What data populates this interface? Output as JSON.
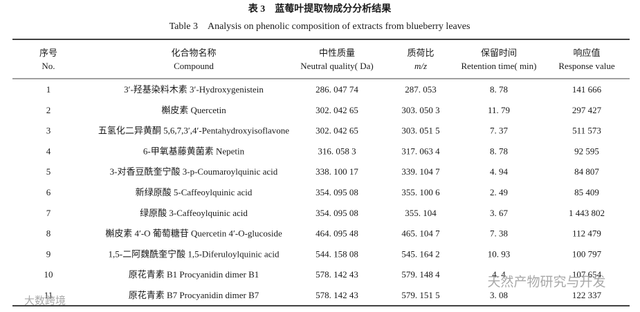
{
  "title_cn": "表 3　蓝莓叶提取物成分分析结果",
  "title_en": "Table 3　Analysis on phenolic composition of extracts from blueberry leaves",
  "table": {
    "header_cn": [
      "序号",
      "化合物名称",
      "中性质量",
      "质荷比",
      "保留时间",
      "响应值"
    ],
    "header_en": [
      "No.",
      "Compound",
      "Neutral quality( Da)",
      "m/z",
      "Retention time( min)",
      "Response value"
    ],
    "rows": [
      [
        "1",
        "3′-羟基染料木素 3′-Hydroxygenistein",
        "286. 047 74",
        "287. 053",
        "8. 78",
        "141 666"
      ],
      [
        "2",
        "槲皮素 Quercetin",
        "302. 042 65",
        "303. 050 3",
        "11. 79",
        "297 427"
      ],
      [
        "3",
        "五氢化二异黄酮 5,6,7,3′,4′-Pentahydroxyisoflavone",
        "302. 042 65",
        "303. 051 5",
        "7. 37",
        "511 573"
      ],
      [
        "4",
        "6-甲氧基藤黄菌素 Nepetin",
        "316. 058 3",
        "317. 063 4",
        "8. 78",
        "92 595"
      ],
      [
        "5",
        "3-对香豆酰奎宁酸 3-p-Coumaroylquinic acid",
        "338. 100 17",
        "339. 104 7",
        "4. 94",
        "84 807"
      ],
      [
        "6",
        "新绿原酸 5-Caffeoylquinic acid",
        "354. 095 08",
        "355. 100 6",
        "2. 49",
        "85 409"
      ],
      [
        "7",
        "绿原酸 3-Caffeoylquinic acid",
        "354. 095 08",
        "355. 104",
        "3. 67",
        "1 443 802"
      ],
      [
        "8",
        "槲皮素 4′-O 葡萄糖苷 Quercetin 4′-O-glucoside",
        "464. 095 48",
        "465. 104 7",
        "7. 38",
        "112 479"
      ],
      [
        "9",
        "1,5-二阿魏酰奎宁酸 1,5-Diferuloylquinic acid",
        "544. 158 08",
        "545. 164 2",
        "10. 93",
        "100 797"
      ],
      [
        "10",
        "原花青素 B1 Procyanidin dimer B1",
        "578. 142 43",
        "579. 148 4",
        "4. 4",
        "107 654"
      ],
      [
        "11",
        "原花青素 B7 Procyanidin dimer B7",
        "578. 142 43",
        "579. 151 5",
        "3. 08",
        "122 337"
      ]
    ]
  },
  "watermarks": [
    "天然产物研究与开发",
    "大数跨境"
  ]
}
